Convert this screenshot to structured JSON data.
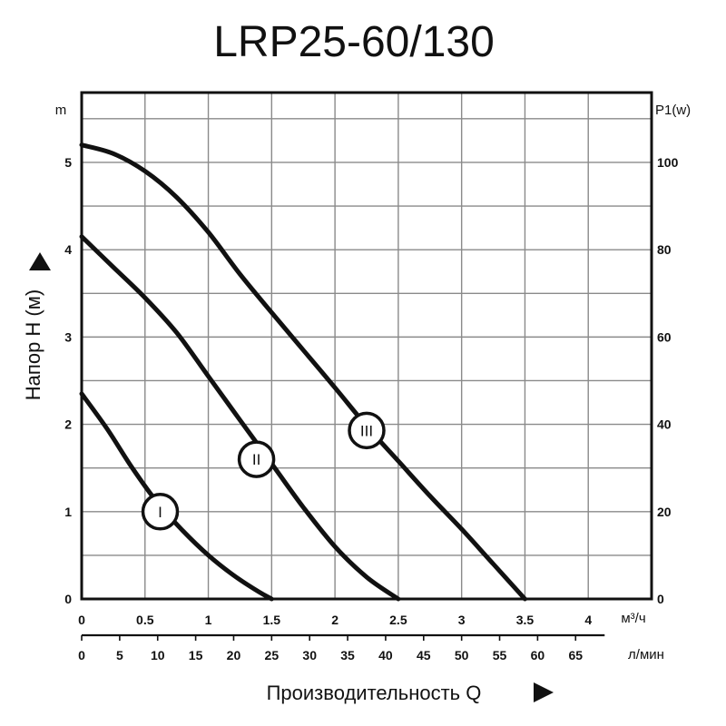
{
  "page": {
    "title": "LRP25-60/130"
  },
  "chart_data": {
    "type": "line",
    "title": "LRP25-60/130",
    "ylabel": "Напор H (м)",
    "y_unit": "m",
    "y2_unit": "P1(w)",
    "xlabel": "Производительность Q",
    "x_unit": "м³/ч",
    "x2_unit": "л/мин",
    "xlim": [
      0,
      4.5
    ],
    "ylim": [
      0,
      5.8
    ],
    "y2lim": [
      0,
      116
    ],
    "grid": true,
    "x_ticks": [
      0,
      0.5,
      1,
      1.5,
      2,
      2.5,
      3,
      3.5,
      4
    ],
    "x_tick_labels": [
      "0",
      "0.5",
      "1",
      "1.5",
      "2",
      "2.5",
      "3",
      "3.5",
      "4"
    ],
    "y_ticks": [
      0,
      1,
      2,
      3,
      4,
      5
    ],
    "y_tick_labels": [
      "0",
      "1",
      "2",
      "3",
      "4",
      "5"
    ],
    "y2_ticks": [
      0,
      20,
      40,
      60,
      80,
      100
    ],
    "y2_tick_labels": [
      "0",
      "20",
      "40",
      "60",
      "80",
      "100"
    ],
    "lmin_ticks": [
      0,
      5,
      10,
      15,
      20,
      25,
      30,
      35,
      40,
      45,
      50,
      55,
      60,
      65
    ],
    "lmin_tick_labels": [
      "0",
      "5",
      "10",
      "15",
      "20",
      "25",
      "30",
      "35",
      "40",
      "45",
      "50",
      "55",
      "60",
      "65"
    ],
    "series": [
      {
        "name": "I",
        "label_at": [
          0.62,
          1.0
        ],
        "x": [
          0,
          0.2,
          0.4,
          0.6,
          0.8,
          1.0,
          1.2,
          1.4,
          1.5
        ],
        "y": [
          2.35,
          1.95,
          1.5,
          1.1,
          0.78,
          0.5,
          0.27,
          0.08,
          0
        ]
      },
      {
        "name": "II",
        "label_at": [
          1.38,
          1.6
        ],
        "x": [
          0,
          0.25,
          0.5,
          0.75,
          1.0,
          1.25,
          1.5,
          1.75,
          2.0,
          2.25,
          2.5
        ],
        "y": [
          4.15,
          3.8,
          3.45,
          3.05,
          2.55,
          2.05,
          1.55,
          1.05,
          0.6,
          0.25,
          0
        ]
      },
      {
        "name": "III",
        "label_at": [
          2.25,
          1.93
        ],
        "x": [
          0,
          0.25,
          0.5,
          0.75,
          1.0,
          1.25,
          1.5,
          1.75,
          2.0,
          2.25,
          2.5,
          2.75,
          3.0,
          3.25,
          3.5
        ],
        "y": [
          5.2,
          5.1,
          4.9,
          4.6,
          4.2,
          3.72,
          3.28,
          2.85,
          2.42,
          1.98,
          1.58,
          1.18,
          0.8,
          0.4,
          0
        ]
      }
    ]
  }
}
